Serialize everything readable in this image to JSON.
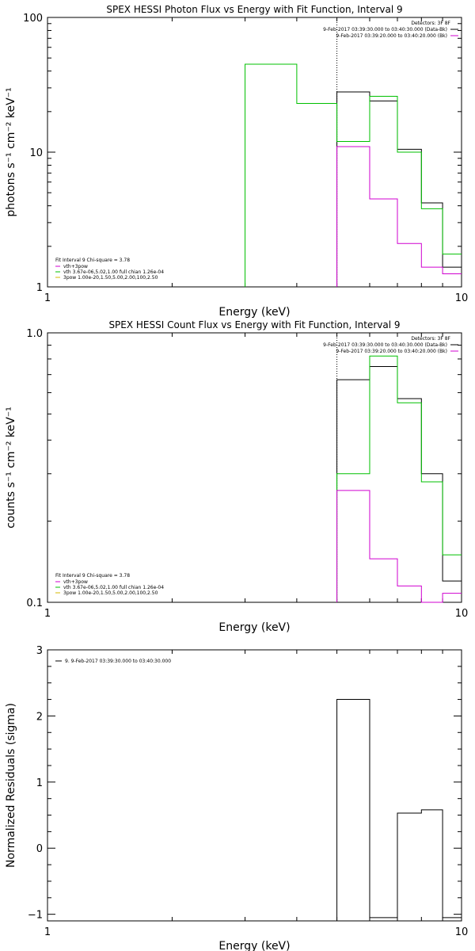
{
  "chart_data": [
    {
      "type": "line",
      "title": "SPEX HESSI Photon Flux vs Energy with Fit Function, Interval 9",
      "xlabel": "Energy (keV)",
      "ylabel": "photons s⁻¹ cm⁻² keV⁻¹",
      "xscale": "log",
      "yscale": "log",
      "xlim": [
        1,
        10
      ],
      "ylim": [
        1,
        100
      ],
      "x_ticks": [
        {
          "v": 1,
          "label": "1"
        },
        {
          "v": 10,
          "label": "10"
        }
      ],
      "y_ticks": [
        {
          "v": 1,
          "label": "1"
        },
        {
          "v": 10,
          "label": "10"
        },
        {
          "v": 100,
          "label": "100"
        }
      ],
      "vline": 5.0,
      "legend_top": {
        "header": "Detectors: 3F 8F",
        "entries": [
          {
            "label": "9-Feb-2017 03:39:30.000 to 03:40:30.000 (Data-Bk)",
            "color": "#000000"
          },
          {
            "label": "9-Feb-2017 03:39:20.000 to 03:40:20.000 (Bk)",
            "color": "#d000d0"
          }
        ]
      },
      "legend_bottom": {
        "header": "Fit Interval 9   Chi-square = 3.78",
        "entries": [
          {
            "label": "vth+3pow",
            "color": "#d000d0"
          },
          {
            "label": "vth 3.67e-06,5.02,1.00  full chian 1.26e-04",
            "color": "#00c000"
          },
          {
            "label": "3pow 1.00e-20,1.50,5.00,2.00,100,2.50",
            "color": "#d4b800"
          }
        ]
      },
      "series": [
        {
          "color": "#000000",
          "edges": [
            5.0,
            6.0,
            7.0,
            8.0,
            9.0,
            10.0
          ],
          "values": [
            28,
            24,
            10.5,
            4.2,
            1.4
          ]
        },
        {
          "color": "#00c000",
          "edges": [
            3.0,
            4.0,
            5.0,
            6.0,
            7.0,
            8.0,
            9.0,
            10.0
          ],
          "values": [
            45,
            23,
            12,
            26,
            10,
            3.8,
            1.75
          ]
        },
        {
          "color": "#d000d0",
          "edges": [
            5.0,
            6.0,
            7.0,
            8.0,
            9.0,
            10.0
          ],
          "values": [
            11,
            4.5,
            2.1,
            1.4,
            1.25
          ]
        }
      ]
    },
    {
      "type": "line",
      "title": "SPEX HESSI Count Flux vs Energy with Fit Function, Interval 9",
      "xlabel": "Energy (keV)",
      "ylabel": "counts s⁻¹ cm⁻² keV⁻¹",
      "xscale": "log",
      "yscale": "log",
      "xlim": [
        1,
        10
      ],
      "ylim": [
        0.1,
        1.0
      ],
      "x_ticks": [
        {
          "v": 1,
          "label": "1"
        },
        {
          "v": 10,
          "label": "10"
        }
      ],
      "y_ticks": [
        {
          "v": 0.1,
          "label": "0.1"
        },
        {
          "v": 1.0,
          "label": "1.0"
        }
      ],
      "vline": 5.0,
      "legend_top": {
        "header": "Detectors: 3F 8F",
        "entries": [
          {
            "label": "9-Feb-2017 03:39:30.000 to 03:40:30.000 (Data-Bk)",
            "color": "#000000"
          },
          {
            "label": "9-Feb-2017 03:39:20.000 to 03:40:20.000 (Bk)",
            "color": "#d000d0"
          }
        ]
      },
      "legend_bottom": {
        "header": "Fit Interval 9   Chi-square = 3.78",
        "entries": [
          {
            "label": "vth+3pow",
            "color": "#d000d0"
          },
          {
            "label": "vth 3.67e-06,5.02,1.00  full chian 1.26e-04",
            "color": "#00c000"
          },
          {
            "label": "3pow 1.00e-20,1.50,5.00,2.00,100,2.50",
            "color": "#d4b800"
          }
        ]
      },
      "series": [
        {
          "color": "#000000",
          "edges": [
            5.0,
            6.0,
            7.0,
            8.0,
            9.0,
            10.0
          ],
          "values": [
            0.67,
            0.75,
            0.57,
            0.3,
            0.12
          ]
        },
        {
          "color": "#00c000",
          "edges": [
            5.0,
            6.0,
            7.0,
            8.0,
            9.0,
            10.0
          ],
          "values": [
            0.3,
            0.82,
            0.55,
            0.28,
            0.15
          ]
        },
        {
          "color": "#d000d0",
          "edges": [
            5.0,
            6.0,
            7.0,
            8.0,
            9.0,
            10.0
          ],
          "values": [
            0.26,
            0.145,
            0.115,
            0.1,
            0.108
          ]
        }
      ]
    },
    {
      "type": "line",
      "title": "",
      "xlabel": "Energy (keV)",
      "ylabel": "Normalized Residuals (sigma)",
      "xscale": "log",
      "yscale": "linear",
      "xlim": [
        1,
        10
      ],
      "ylim": [
        -1.1,
        3
      ],
      "x_ticks": [
        {
          "v": 1,
          "label": "1"
        },
        {
          "v": 10,
          "label": "10"
        }
      ],
      "y_ticks": [
        {
          "v": -1,
          "label": "−1"
        },
        {
          "v": 0,
          "label": "0"
        },
        {
          "v": 1,
          "label": "1"
        },
        {
          "v": 2,
          "label": "2"
        },
        {
          "v": 3,
          "label": "3"
        }
      ],
      "vline": null,
      "legend_top_left": {
        "entries": [
          {
            "label": "9.  9-Feb-2017 03:39:30.000 to 03:40:30.000",
            "color": "#000000"
          }
        ]
      },
      "series": [
        {
          "color": "#000000",
          "edges": [
            5.0,
            6.0,
            7.0,
            8.0,
            9.0,
            10.0
          ],
          "values": [
            2.25,
            -1.05,
            0.53,
            0.58,
            -1.05
          ]
        }
      ]
    }
  ]
}
